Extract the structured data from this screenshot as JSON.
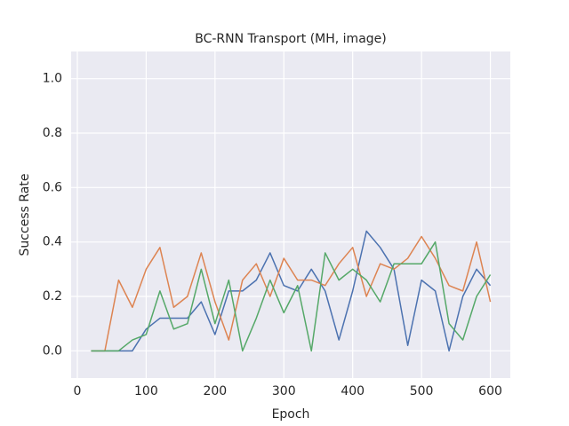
{
  "chart_data": {
    "type": "line",
    "title": "BC-RNN Transport (MH, image)",
    "xlabel": "Epoch",
    "ylabel": "Success Rate",
    "x": [
      20,
      40,
      60,
      80,
      100,
      120,
      140,
      160,
      180,
      200,
      220,
      240,
      260,
      280,
      300,
      320,
      340,
      360,
      380,
      400,
      420,
      440,
      460,
      480,
      500,
      520,
      540,
      560,
      580,
      600
    ],
    "series": [
      {
        "color": "#4c72b0",
        "values": [
          0,
          0,
          0,
          0,
          0.08,
          0.12,
          0.12,
          0.12,
          0.18,
          0.06,
          0.22,
          0.22,
          0.26,
          0.36,
          0.24,
          0.22,
          0.3,
          0.22,
          0.04,
          0.22,
          0.44,
          0.38,
          0.3,
          0.02,
          0.26,
          0.22,
          0.0,
          0.2,
          0.3,
          0.24
        ]
      },
      {
        "color": "#dd8452",
        "values": [
          0,
          0,
          0.26,
          0.16,
          0.3,
          0.38,
          0.16,
          0.2,
          0.36,
          0.18,
          0.04,
          0.26,
          0.32,
          0.2,
          0.34,
          0.26,
          0.26,
          0.24,
          0.32,
          0.38,
          0.2,
          0.32,
          0.3,
          0.34,
          0.42,
          0.34,
          0.24,
          0.22,
          0.4,
          0.18
        ]
      },
      {
        "color": "#55a868",
        "values": [
          0,
          0,
          0,
          0.04,
          0.06,
          0.22,
          0.08,
          0.1,
          0.3,
          0.1,
          0.26,
          0.0,
          0.12,
          0.26,
          0.14,
          0.24,
          0.0,
          0.36,
          0.26,
          0.3,
          0.26,
          0.18,
          0.32,
          0.32,
          0.32,
          0.4,
          0.1,
          0.04,
          0.2,
          0.28
        ]
      }
    ],
    "xlim": [
      -9,
      629
    ],
    "ylim": [
      -0.1,
      1.1
    ],
    "xticks": [
      0,
      100,
      200,
      300,
      400,
      500,
      600
    ],
    "yticks": [
      {
        "value": 0,
        "label": "0.0"
      },
      {
        "value": 0.2,
        "label": "0.2"
      },
      {
        "value": 0.4,
        "label": "0.4"
      },
      {
        "value": 0.6,
        "label": "0.6"
      },
      {
        "value": 0.8,
        "label": "0.8"
      },
      {
        "value": 1.0,
        "label": "1.0"
      }
    ],
    "grid": true
  }
}
